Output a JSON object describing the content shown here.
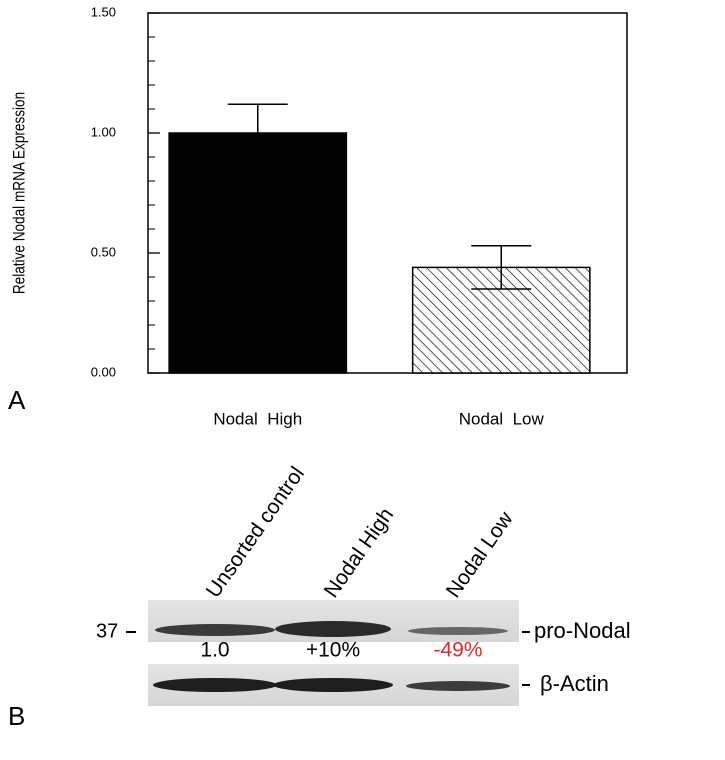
{
  "chart_data": {
    "type": "bar",
    "panel_label": "A",
    "ylabel": "Relative Nodal mRNA Expression",
    "categories": [
      "Nodal  High",
      "Nodal  Low"
    ],
    "values": [
      1.0,
      0.44
    ],
    "errors": [
      0.12,
      0.09
    ],
    "colors": [
      "#000000",
      "#ffffff"
    ],
    "hatch": [
      false,
      true
    ],
    "ylim": [
      0,
      1.5
    ],
    "yticks": [
      {
        "value": 0,
        "label": "0.00"
      },
      {
        "value": 0.5,
        "label": "0.50"
      },
      {
        "value": 1.0,
        "label": "1.00"
      },
      {
        "value": 1.5,
        "label": "1.50"
      }
    ],
    "minor_yticks": [
      0.1,
      0.2,
      0.3,
      0.4,
      0.6,
      0.7,
      0.8,
      0.9,
      1.1,
      1.2,
      1.3,
      1.4
    ]
  },
  "blot": {
    "panel_label": "B",
    "lanes": [
      "Unsorted control",
      "Nodal High",
      "Nodal Low"
    ],
    "marker": "37",
    "bands": [
      "pro-Nodal",
      "β-Actin"
    ],
    "quantification": [
      {
        "text": "1.0",
        "color": "#000000"
      },
      {
        "text": "+10%",
        "color": "#000000"
      },
      {
        "text": "-49%",
        "color": "#e8262a"
      }
    ]
  }
}
